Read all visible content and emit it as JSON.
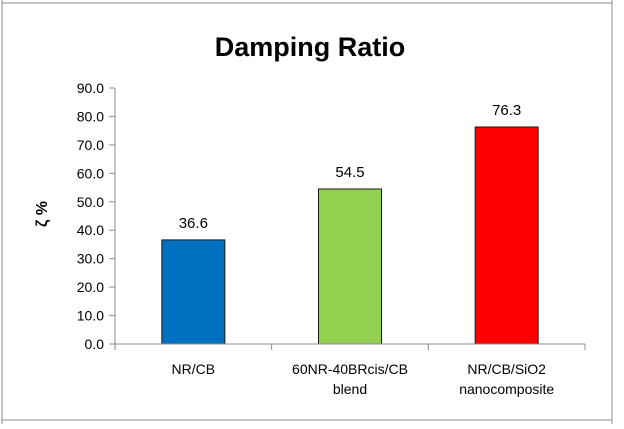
{
  "chart_data": {
    "type": "bar",
    "title": "Damping Ratio",
    "ylabel": "ζ %",
    "xlabel": "",
    "ylim": [
      0,
      90
    ],
    "ytick_step": 10,
    "ytick_labels": [
      "0.0",
      "10.0",
      "20.0",
      "30.0",
      "40.0",
      "50.0",
      "60.0",
      "70.0",
      "80.0",
      "90.0"
    ],
    "categories": [
      [
        "NR/CB"
      ],
      [
        "60NR-40BRcis/CB",
        "blend"
      ],
      [
        "NR/CB/SiO2",
        "nanocomposite"
      ]
    ],
    "values": [
      36.6,
      54.5,
      76.3
    ],
    "data_labels": [
      "36.6",
      "54.5",
      "76.3"
    ],
    "colors": [
      "#0070C0",
      "#92D050",
      "#FF0000"
    ],
    "grid": false,
    "legend": "none"
  }
}
